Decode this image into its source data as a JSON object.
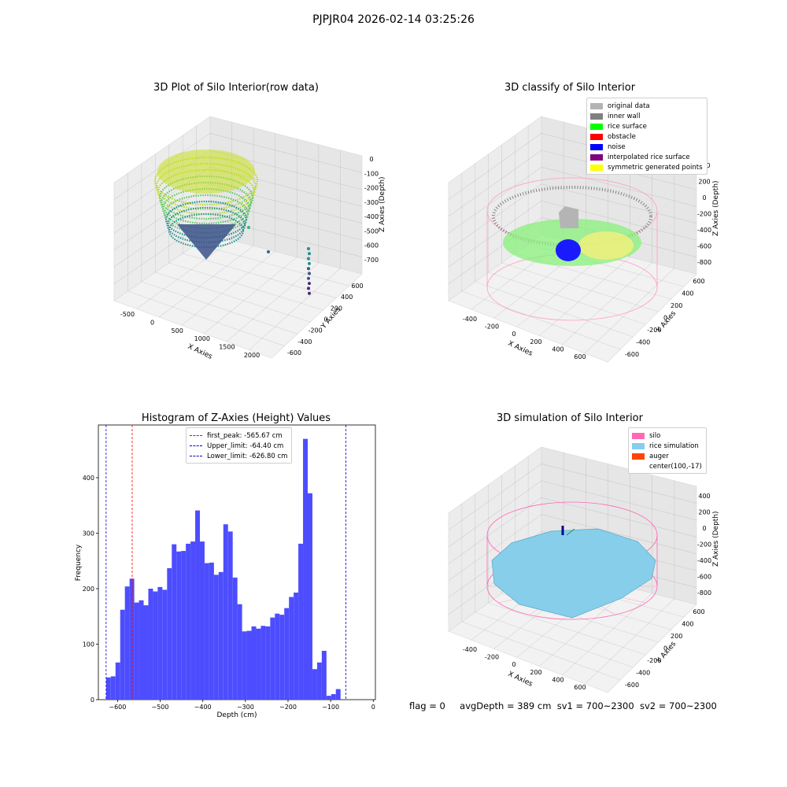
{
  "suptitle": "PJPJR04 2026-02-14 03:25:26",
  "panel1": {
    "title": "3D Plot of Silo Interior(row data)",
    "xlabel": "X Axies",
    "ylabel": "Y Axies",
    "zlabel": "Z Axies (Depth)",
    "xticks": [
      "-500",
      "0",
      "500",
      "1000",
      "1500",
      "2000"
    ],
    "yticks": [
      "600",
      "400",
      "200",
      "0",
      "-200",
      "-400",
      "-600"
    ],
    "zticks": [
      "0",
      "-100",
      "-200",
      "-300",
      "-400",
      "-500",
      "-600",
      "-700"
    ]
  },
  "panel2": {
    "title": "3D classify of Silo Interior",
    "xlabel": "X Axies",
    "ylabel": "Y Axies",
    "zlabel": "Z Axies (Depth)",
    "xticks": [
      "-400",
      "-200",
      "0",
      "200",
      "400",
      "600"
    ],
    "yticks": [
      "600",
      "400",
      "200",
      "0",
      "-200",
      "-400",
      "-600"
    ],
    "zticks": [
      "400",
      "200",
      "0",
      "-200",
      "-400",
      "-600",
      "-800"
    ],
    "legend": [
      {
        "label": "original data",
        "color": "#b4b4b4"
      },
      {
        "label": "inner wall",
        "color": "#808080"
      },
      {
        "label": "rice surface",
        "color": "#00ff00"
      },
      {
        "label": "obstacle",
        "color": "#ff0000"
      },
      {
        "label": "noise",
        "color": "#0000ff"
      },
      {
        "label": "interpolated rice surface",
        "color": "#800080"
      },
      {
        "label": "symmetric generated points",
        "color": "#ffff00"
      }
    ]
  },
  "panel3": {
    "title": "Histogram of Z-Axies (Height) Values",
    "xlabel": "Depth (cm)",
    "ylabel": "Frequency",
    "legend": [
      {
        "label": "first_peak: -565.67 cm",
        "color": "#ff0000"
      },
      {
        "label": "Upper_limit: -64.40 cm",
        "color": "#0000cc"
      },
      {
        "label": "Lower_limit: -626.80 cm",
        "color": "#0000cc"
      }
    ]
  },
  "panel4": {
    "title": "3D simulation of Silo Interior",
    "xlabel": "X Axies",
    "ylabel": "Y Axies",
    "zlabel": "Z Axies (Depth)",
    "xticks": [
      "-400",
      "-200",
      "0",
      "200",
      "400",
      "600"
    ],
    "yticks": [
      "600",
      "400",
      "200",
      "0",
      "-200",
      "-400",
      "-600"
    ],
    "zticks": [
      "400",
      "200",
      "0",
      "-200",
      "-400",
      "-600",
      "-800"
    ],
    "legend": [
      {
        "label": "silo",
        "color": "#ff69b4"
      },
      {
        "label": "rice simulation",
        "color": "#87ceeb"
      },
      {
        "label": "auger",
        "color": "#ff4500"
      },
      {
        "label": "center(100,-17)",
        "color": ""
      }
    ]
  },
  "status": {
    "flag": "flag = 0",
    "avg": "avgDepth = 389 cm",
    "sv1": "sv1 = 700~2300",
    "sv2": "sv2 = 700~2300"
  },
  "chart_data": [
    {
      "type": "scatter",
      "title": "3D Plot of Silo Interior(row data)",
      "xlabel": "X Axies",
      "ylabel": "Y Axies",
      "zlabel": "Z Axies (Depth)",
      "xlim": [
        -600,
        2100
      ],
      "ylim": [
        -650,
        700
      ],
      "zlim": [
        -750,
        30
      ],
      "grid": true
    },
    {
      "type": "scatter",
      "title": "3D classify of Silo Interior",
      "xlabel": "X Axies",
      "ylabel": "Y Axies",
      "zlabel": "Z Axies (Depth)",
      "xlim": [
        -450,
        700
      ],
      "ylim": [
        -650,
        650
      ],
      "zlim": [
        -900,
        450
      ],
      "legend_position": "top-right",
      "grid": true
    },
    {
      "type": "bar",
      "title": "Histogram of Z-Axies (Height) Values",
      "xlabel": "Depth (cm)",
      "ylabel": "Frequency",
      "xlim": [
        -645,
        5
      ],
      "ylim": [
        0,
        495
      ],
      "xticks": [
        -600,
        -500,
        -400,
        -300,
        -200,
        -100,
        0
      ],
      "yticks": [
        0,
        100,
        200,
        300,
        400
      ],
      "bin_start": -626.8,
      "bin_width": 11.0,
      "values": [
        40,
        42,
        67,
        162,
        204,
        218,
        175,
        179,
        170,
        200,
        195,
        203,
        198,
        237,
        280,
        267,
        268,
        281,
        285,
        341,
        285,
        246,
        247,
        225,
        230,
        316,
        303,
        220,
        172,
        123,
        124,
        132,
        128,
        133,
        132,
        148,
        155,
        153,
        165,
        185,
        193,
        281,
        470,
        372,
        55,
        67,
        88,
        7,
        10,
        19
      ],
      "series": [
        {
          "name": "first_peak: -565.67 cm",
          "x": -565.67
        },
        {
          "name": "Upper_limit: -64.40 cm",
          "x": -64.4
        },
        {
          "name": "Lower_limit: -626.80 cm",
          "x": -626.8
        }
      ],
      "legend_position": "top-center",
      "grid": false
    },
    {
      "type": "scatter",
      "title": "3D simulation of Silo Interior",
      "xlabel": "X Axies",
      "ylabel": "Y Axies",
      "zlabel": "Z Axies (Depth)",
      "xlim": [
        -450,
        700
      ],
      "ylim": [
        -650,
        650
      ],
      "zlim": [
        -900,
        450
      ],
      "legend_position": "top-right",
      "grid": true
    }
  ]
}
